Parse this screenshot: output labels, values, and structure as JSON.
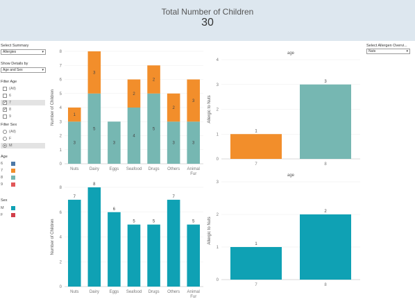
{
  "header": {
    "title": "Total Number of Children",
    "total": "30"
  },
  "sidebar": {
    "summary_label": "Select Summary",
    "summary_value": "Allergies",
    "details_label": "Show Details by",
    "details_value": "Age and Sex",
    "filter_age_label": "Filter Age",
    "age_options": [
      {
        "label": "(All)",
        "checked": false,
        "selected": false
      },
      {
        "label": "6",
        "checked": false,
        "selected": false
      },
      {
        "label": "7",
        "checked": true,
        "selected": true
      },
      {
        "label": "8",
        "checked": true,
        "selected": false
      },
      {
        "label": "9",
        "checked": false,
        "selected": false
      }
    ],
    "filter_sex_label": "Filter Sex",
    "sex_options": [
      {
        "label": "(All)",
        "on": false,
        "selected": false
      },
      {
        "label": "F",
        "on": false,
        "selected": false
      },
      {
        "label": "M",
        "on": true,
        "selected": true
      }
    ],
    "age_legend_label": "Age",
    "age_legend": [
      {
        "label": "6",
        "color": "#4e79a7"
      },
      {
        "label": "7",
        "color": "#f28e2b"
      },
      {
        "label": "8",
        "color": "#76b7b2"
      },
      {
        "label": "9",
        "color": "#e15759"
      }
    ],
    "sex_legend_label": "Sex",
    "sex_legend": [
      {
        "label": "M",
        "color": "#0fa1b4"
      },
      {
        "label": "F",
        "color": "#d13f4a"
      }
    ]
  },
  "allergen_select": {
    "label": "Select Allergen Overvi...",
    "value": "Nuts"
  },
  "colors": {
    "age7": "#f28e2b",
    "age8": "#76b7b2",
    "male": "#0fa1b4"
  },
  "chart_data": [
    {
      "type": "bar",
      "stacked": true,
      "categories": [
        "Nuts",
        "Dairy",
        "Eggs",
        "Seafood",
        "Drugs",
        "Others",
        "Animal Fur"
      ],
      "series": [
        {
          "name": "8",
          "values": [
            3,
            5,
            3,
            4,
            5,
            3,
            3
          ]
        },
        {
          "name": "7",
          "values": [
            1,
            3,
            0,
            2,
            2,
            2,
            3
          ]
        }
      ],
      "ylabel": "Number of Children",
      "ylim": [
        0,
        8
      ],
      "yticks": [
        0,
        1,
        2,
        3,
        4,
        5,
        6,
        7,
        8
      ]
    },
    {
      "type": "bar",
      "categories": [
        "Nuts",
        "Dairy",
        "Eggs",
        "Seafood",
        "Drugs",
        "Others",
        "Animal Fur"
      ],
      "values": [
        7,
        8,
        6,
        5,
        5,
        7,
        5
      ],
      "ylabel": "Number of Children",
      "ylim": [
        0,
        8
      ],
      "yticks": [
        0,
        2,
        4,
        6,
        8
      ]
    },
    {
      "type": "bar",
      "title": "age",
      "categories": [
        "7",
        "8"
      ],
      "values": [
        1,
        3
      ],
      "ylabel": "Allergic to Nuts",
      "ylim": [
        0,
        4
      ],
      "yticks": [
        0,
        1,
        2,
        3,
        4
      ]
    },
    {
      "type": "bar",
      "title": "age",
      "categories": [
        "7",
        "8"
      ],
      "values": [
        1,
        2
      ],
      "ylabel": "Allergic to Nuts",
      "ylim": [
        0,
        3
      ],
      "yticks": [
        0,
        1,
        2,
        3
      ]
    }
  ]
}
